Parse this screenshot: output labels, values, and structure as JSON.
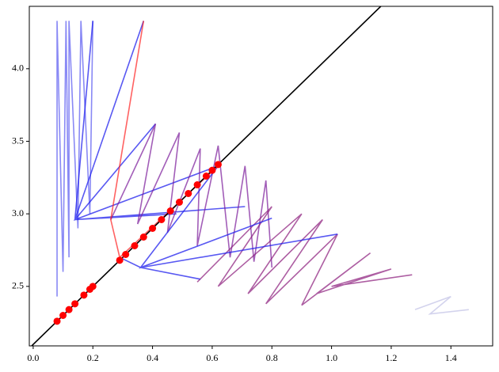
{
  "chart_data": {
    "type": "line",
    "xlim": [
      -0.013,
      1.54
    ],
    "ylim": [
      2.09,
      4.43
    ],
    "xticks": [
      {
        "value": 0,
        "label": "0.0"
      },
      {
        "value": 0.2,
        "label": "0.2"
      },
      {
        "value": 0.4,
        "label": "0.4"
      },
      {
        "value": 0.6,
        "label": "0.6"
      },
      {
        "value": 0.8,
        "label": "0.8"
      },
      {
        "value": 1.0,
        "label": "1.0"
      },
      {
        "value": 1.2,
        "label": "1.2"
      },
      {
        "value": 1.4,
        "label": "1.4"
      }
    ],
    "yticks": [
      2.5,
      3.5,
      {
        "value": 3.0,
        "label": "3.0"
      },
      {
        "value": 4.0,
        "label": "4.0"
      }
    ],
    "series": [
      {
        "color": "#3a3aee",
        "opacity": 0.6,
        "x": [
          0.08,
          0.08,
          0.1,
          0.11,
          0.12,
          0.12,
          0.15,
          0.16,
          0.19,
          0.2
        ],
        "values": [
          2.43,
          4.33,
          2.6,
          4.33,
          2.7,
          4.33,
          2.9,
          4.33,
          3.0,
          4.33
        ]
      },
      {
        "color": "#2020ee",
        "opacity": 0.75,
        "x": [
          0.2,
          0.14,
          0.37,
          0.14,
          0.62,
          0.14,
          0.48,
          0.14,
          0.71,
          0.14,
          0.41
        ],
        "values": [
          4.33,
          2.96,
          4.33,
          2.96,
          3.33,
          2.96,
          3.0,
          2.96,
          3.05,
          2.96,
          3.62
        ]
      },
      {
        "color": "#7a1a9a",
        "opacity": 0.7,
        "x": [
          0.26,
          0.41,
          0.35,
          0.49,
          0.45,
          0.56,
          0.55,
          0.62,
          0.66,
          0.71,
          0.74,
          0.78,
          0.8
        ],
        "values": [
          2.96,
          3.62,
          2.93,
          3.56,
          2.87,
          3.45,
          2.78,
          3.47,
          2.7,
          3.33,
          2.67,
          3.23,
          2.63
        ]
      },
      {
        "color": "#8a1a7a",
        "opacity": 0.7,
        "x": [
          0.55,
          0.8,
          0.62,
          0.9,
          0.72,
          0.97,
          0.78,
          1.02,
          0.9,
          1.13,
          0.95,
          1.2,
          1.0,
          1.27
        ],
        "values": [
          2.53,
          3.05,
          2.5,
          3.0,
          2.45,
          2.96,
          2.38,
          2.86,
          2.37,
          2.73,
          2.45,
          2.62,
          2.5,
          2.58
        ]
      },
      {
        "color": "#2020ee",
        "opacity": 0.75,
        "x": [
          0.36,
          0.62,
          0.36,
          0.8,
          0.36,
          1.02,
          0.36,
          0.56,
          0.36,
          0.29
        ],
        "values": [
          2.63,
          3.33,
          2.63,
          2.97,
          2.63,
          2.86,
          2.63,
          2.55,
          2.63,
          2.7
        ]
      },
      {
        "color": "#ff2020",
        "opacity": 0.7,
        "x": [
          0.62,
          0.29,
          0.26,
          0.37
        ],
        "values": [
          3.33,
          2.7,
          2.96,
          4.33
        ]
      },
      {
        "color": "#c8c8e8",
        "opacity": 0.8,
        "x": [
          1.28,
          1.4,
          1.33,
          1.46
        ],
        "values": [
          2.34,
          2.43,
          2.31,
          2.34
        ]
      },
      {
        "color": "#000000",
        "opacity": 1,
        "x": [
          -0.005,
          1.165
        ],
        "values": [
          2.09,
          4.43
        ]
      }
    ],
    "points": {
      "color": "#ff0000",
      "x": [
        0.08,
        0.1,
        0.12,
        0.14,
        0.17,
        0.19,
        0.2,
        0.29,
        0.31,
        0.34,
        0.37,
        0.4,
        0.43,
        0.46,
        0.49,
        0.52,
        0.55,
        0.58,
        0.6,
        0.62
      ],
      "values": [
        2.26,
        2.3,
        2.34,
        2.38,
        2.44,
        2.48,
        2.5,
        2.68,
        2.72,
        2.78,
        2.84,
        2.9,
        2.96,
        3.02,
        3.08,
        3.14,
        3.2,
        3.26,
        3.3,
        3.34
      ]
    }
  }
}
